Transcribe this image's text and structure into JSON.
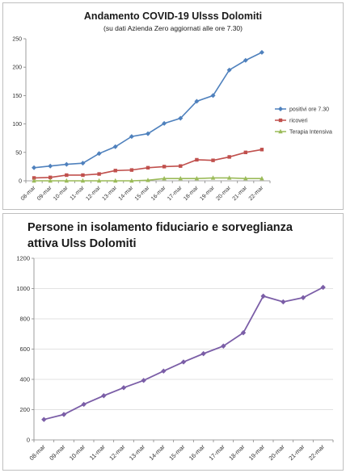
{
  "charts": {
    "top": {
      "title": "Andamento COVID-19 Ulsss Dolomiti",
      "subtitle": "(su dati Azienda Zero aggiornati alle ore 7.30)"
    },
    "bottom": {
      "title_line1": "Persone in isolamento fiduciario e sorveglianza",
      "title_line2": "attiva Ulss Dolomiti"
    }
  },
  "chart_data": [
    {
      "type": "line",
      "title": "Andamento COVID-19 Ulsss Dolomiti",
      "subtitle": "(su dati Azienda Zero aggiornati alle ore 7.30)",
      "categories": [
        "08-mar",
        "09-mar",
        "10-mar",
        "11-mar",
        "12-mar",
        "13-mar",
        "14-mar",
        "15-mar",
        "16-mar",
        "17-mar",
        "18-mar",
        "19-mar",
        "20-mar",
        "21-mar",
        "22-mar"
      ],
      "ylim": [
        0,
        250
      ],
      "yticks": [
        0,
        50,
        100,
        150,
        200,
        250
      ],
      "grid": false,
      "legend": "right",
      "series": [
        {
          "name": "positivi ore 7.30",
          "color": "#4f81bd",
          "marker": "diamond",
          "values": [
            23,
            26,
            29,
            31,
            48,
            60,
            78,
            83,
            101,
            110,
            140,
            150,
            195,
            212,
            226
          ]
        },
        {
          "name": "ricoveri",
          "color": "#c0504d",
          "marker": "square",
          "values": [
            5,
            6,
            10,
            10,
            12,
            18,
            19,
            23,
            25,
            26,
            37,
            36,
            42,
            50,
            55
          ]
        },
        {
          "name": "Terapia Intensiva",
          "color": "#9bbb59",
          "marker": "triangle",
          "values": [
            0,
            0,
            0,
            0,
            0,
            0,
            0,
            1,
            4,
            4,
            4,
            5,
            5,
            4,
            4
          ]
        }
      ]
    },
    {
      "type": "line",
      "title": "Persone in isolamento fiduciario e sorveglianza attiva Ulss Dolomiti",
      "categories": [
        "08-mar",
        "09-mar",
        "10-mar",
        "11-mar",
        "12-mar",
        "13-mar",
        "14-mar",
        "15-mar",
        "16-mar",
        "17-mar",
        "18-mar",
        "19-mar",
        "20-mar",
        "21-mar",
        "22-mar"
      ],
      "ylim": [
        0,
        1200
      ],
      "yticks": [
        0,
        200,
        400,
        600,
        800,
        1000,
        1200
      ],
      "grid": true,
      "series": [
        {
          "color": "#7b5ea7",
          "marker": "diamond",
          "values": [
            135,
            168,
            235,
            292,
            345,
            393,
            455,
            515,
            570,
            620,
            708,
            950,
            912,
            940,
            1008
          ]
        }
      ]
    }
  ]
}
